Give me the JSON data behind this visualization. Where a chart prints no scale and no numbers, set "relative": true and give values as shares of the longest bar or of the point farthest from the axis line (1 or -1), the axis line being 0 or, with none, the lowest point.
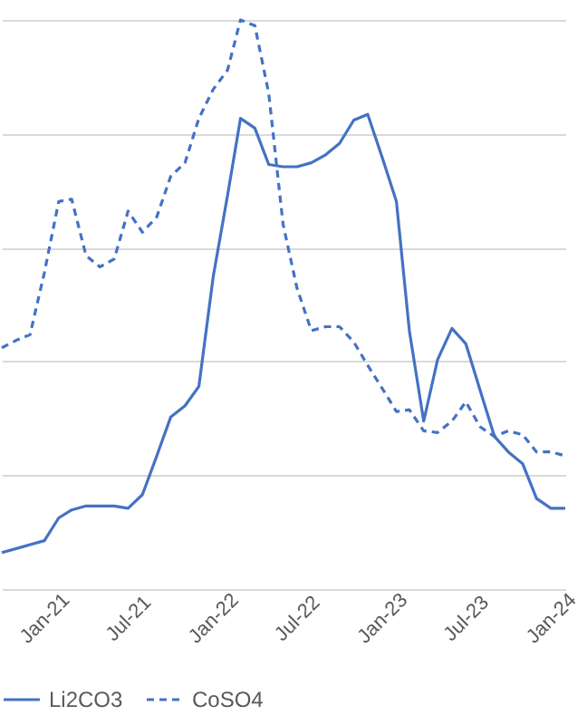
{
  "chart_data": {
    "type": "line",
    "relative": true,
    "x": [
      "2020-10",
      "2020-11",
      "2020-12",
      "2021-01",
      "2021-02",
      "2021-03",
      "2021-04",
      "2021-05",
      "2021-06",
      "2021-07",
      "2021-08",
      "2021-09",
      "2021-10",
      "2021-11",
      "2021-12",
      "2022-01",
      "2022-02",
      "2022-03",
      "2022-04",
      "2022-05",
      "2022-06",
      "2022-07",
      "2022-08",
      "2022-09",
      "2022-10",
      "2022-11",
      "2022-12",
      "2023-01",
      "2023-02",
      "2023-03",
      "2023-04",
      "2023-05",
      "2023-06",
      "2023-07",
      "2023-08",
      "2023-09",
      "2023-10",
      "2023-11",
      "2023-12",
      "2024-01",
      "2024-02"
    ],
    "xlim": [
      "2020-10",
      "2024-02"
    ],
    "xticks": [
      {
        "value": "2021-01",
        "label": "Jan-21"
      },
      {
        "value": "2021-07",
        "label": "Jul-21"
      },
      {
        "value": "2022-01",
        "label": "Jan-22"
      },
      {
        "value": "2022-07",
        "label": "Jul-22"
      },
      {
        "value": "2023-01",
        "label": "Jan-23"
      },
      {
        "value": "2023-07",
        "label": "Jul-23"
      },
      {
        "value": "2024-01",
        "label": "Jan-24"
      }
    ],
    "series": [
      {
        "name": "Li2CO3",
        "color": "#4472c4",
        "line_style": "solid",
        "values": [
          0.064,
          0.071,
          0.078,
          0.085,
          0.125,
          0.139,
          0.146,
          0.146,
          0.146,
          0.142,
          0.166,
          0.234,
          0.302,
          0.322,
          0.356,
          0.549,
          0.692,
          0.827,
          0.81,
          0.746,
          0.742,
          0.742,
          0.749,
          0.763,
          0.783,
          0.824,
          0.834,
          0.759,
          0.681,
          0.454,
          0.295,
          0.403,
          0.458,
          0.431,
          0.349,
          0.268,
          0.241,
          0.22,
          0.159,
          0.142,
          0.142
        ]
      },
      {
        "name": "CoSO4",
        "color": "#4472c4",
        "line_style": "dashed",
        "values": [
          0.424,
          0.437,
          0.447,
          0.556,
          0.681,
          0.685,
          0.586,
          0.566,
          0.58,
          0.664,
          0.627,
          0.654,
          0.725,
          0.749,
          0.827,
          0.878,
          0.912,
          1.0,
          0.99,
          0.871,
          0.641,
          0.529,
          0.454,
          0.461,
          0.461,
          0.434,
          0.393,
          0.353,
          0.312,
          0.315,
          0.278,
          0.275,
          0.295,
          0.329,
          0.285,
          0.268,
          0.278,
          0.271,
          0.241,
          0.241,
          0.234
        ]
      }
    ],
    "grid": "y",
    "legend": "bottom",
    "marker": "none"
  }
}
